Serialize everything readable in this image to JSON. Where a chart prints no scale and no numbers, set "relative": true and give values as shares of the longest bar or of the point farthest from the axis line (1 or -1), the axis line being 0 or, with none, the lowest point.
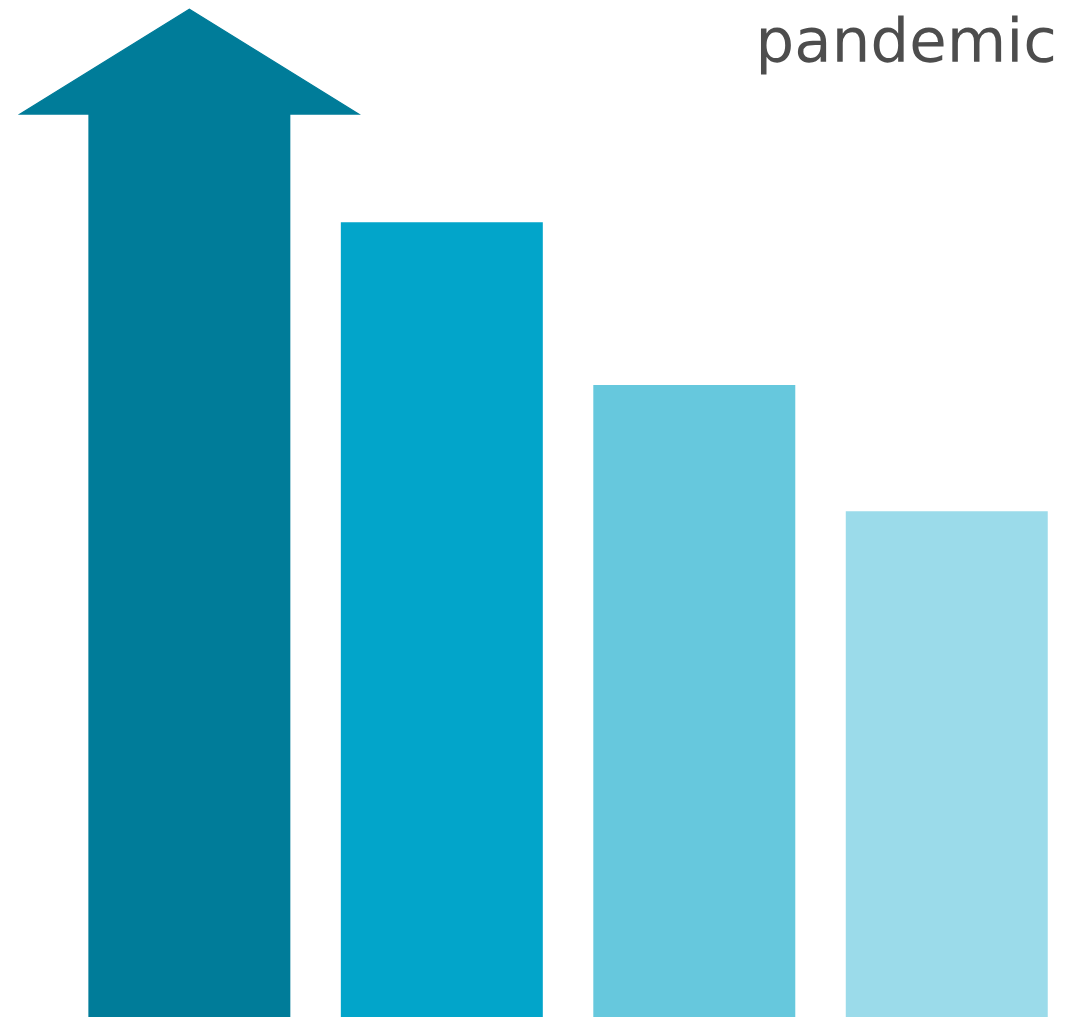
{
  "chart_data": {
    "type": "bar",
    "title": "pandemic",
    "relative": true,
    "categories": [
      null,
      null,
      null,
      null
    ],
    "values": [
      1,
      0.88,
      0.7,
      0.56
    ],
    "colors": [
      "#007c99",
      "#02a5ca",
      "#66c8dd",
      "#9bdbea"
    ]
  }
}
